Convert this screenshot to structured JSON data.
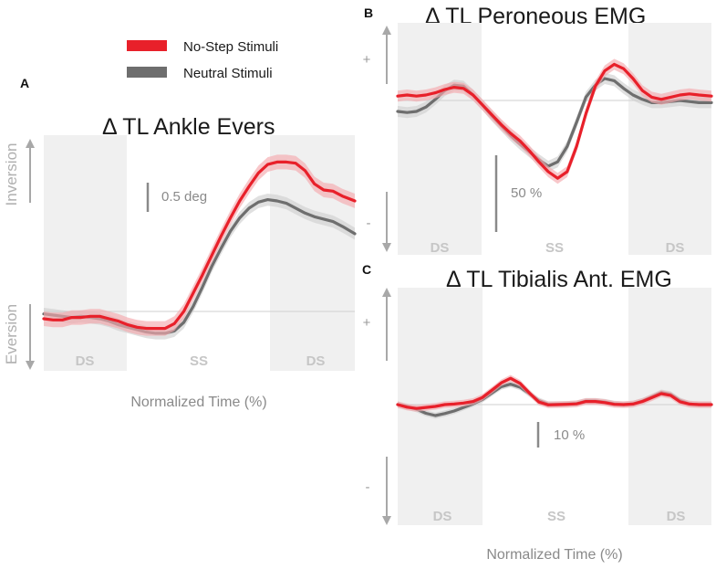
{
  "colors": {
    "no_step": "#e8202a",
    "neutral": "#6e6e6e",
    "no_step_band": "#f4a9ad",
    "neutral_band": "#cfcfcf",
    "phase_shade": "#f0f0f0"
  },
  "chart_data": [
    {
      "panel": "A",
      "type": "line",
      "title": "Δ TL Ankle Evers",
      "xlabel": "Normalized Time (%)",
      "upper_label": "Inversion",
      "lower_label": "Eversion",
      "scale_bar": "0.5 deg",
      "phases": [
        "DS",
        "SS",
        "DS"
      ],
      "ylim": [
        -0.3,
        1.5
      ],
      "x": [
        0,
        3,
        6,
        9,
        12,
        15,
        18,
        21,
        24,
        27,
        30,
        33,
        36,
        39,
        42,
        45,
        48,
        51,
        54,
        57,
        60,
        63,
        66,
        69,
        72,
        75,
        78,
        81,
        84,
        87,
        90,
        93,
        96,
        100
      ],
      "series": [
        {
          "name": "No-Step Stimuli",
          "band": 0.06,
          "values": [
            -0.06,
            -0.07,
            -0.07,
            -0.05,
            -0.05,
            -0.04,
            -0.04,
            -0.06,
            -0.08,
            -0.11,
            -0.13,
            -0.14,
            -0.14,
            -0.14,
            -0.1,
            0.0,
            0.15,
            0.3,
            0.46,
            0.62,
            0.77,
            0.91,
            1.03,
            1.14,
            1.21,
            1.23,
            1.23,
            1.22,
            1.16,
            1.05,
            1.0,
            0.99,
            0.95,
            0.91
          ]
        },
        {
          "name": "Neutral Stimuli",
          "band": 0.05,
          "values": [
            -0.02,
            -0.03,
            -0.04,
            -0.05,
            -0.04,
            -0.05,
            -0.06,
            -0.08,
            -0.11,
            -0.13,
            -0.15,
            -0.17,
            -0.18,
            -0.18,
            -0.16,
            -0.09,
            0.04,
            0.2,
            0.37,
            0.52,
            0.66,
            0.77,
            0.85,
            0.9,
            0.92,
            0.91,
            0.89,
            0.85,
            0.81,
            0.78,
            0.76,
            0.74,
            0.7,
            0.64
          ]
        }
      ]
    },
    {
      "panel": "B",
      "type": "line",
      "title": "Δ TL Peroneous EMG",
      "xlabel": "",
      "upper_label": "+",
      "lower_label": "-",
      "scale_bar": "50 %",
      "phases": [
        "DS",
        "SS",
        "DS"
      ],
      "ylim": [
        -140,
        50
      ],
      "x": [
        0,
        3,
        6,
        9,
        12,
        15,
        18,
        21,
        24,
        27,
        30,
        33,
        36,
        39,
        42,
        45,
        48,
        51,
        54,
        57,
        60,
        63,
        66,
        69,
        72,
        75,
        78,
        81,
        84,
        87,
        90,
        93,
        96,
        100
      ],
      "series": [
        {
          "name": "No-Step Stimuli",
          "band": 5,
          "values": [
            4,
            5,
            4,
            5,
            7,
            10,
            12,
            11,
            5,
            -4,
            -13,
            -22,
            -30,
            -37,
            -46,
            -56,
            -65,
            -71,
            -65,
            -42,
            -12,
            13,
            27,
            33,
            29,
            20,
            9,
            3,
            1,
            3,
            5,
            6,
            5,
            4
          ]
        },
        {
          "name": "Neutral Stimuli",
          "band": 5,
          "values": [
            -10,
            -11,
            -10,
            -6,
            1,
            9,
            14,
            13,
            5,
            -4,
            -14,
            -23,
            -32,
            -40,
            -47,
            -54,
            -60,
            -56,
            -42,
            -20,
            3,
            14,
            20,
            18,
            11,
            5,
            1,
            -2,
            -2,
            -1,
            0,
            -1,
            -2,
            -2
          ]
        }
      ]
    },
    {
      "panel": "C",
      "type": "line",
      "title": "Δ TL Tibialis Ant. EMG",
      "xlabel": "Normalized Time (%)",
      "upper_label": "+",
      "lower_label": "-",
      "scale_bar": "10 %",
      "phases": [
        "DS",
        "SS",
        "DS"
      ],
      "ylim": [
        -20,
        17
      ],
      "x": [
        0,
        3,
        6,
        9,
        12,
        15,
        18,
        21,
        24,
        27,
        30,
        33,
        36,
        39,
        42,
        45,
        48,
        51,
        54,
        57,
        60,
        63,
        66,
        69,
        72,
        75,
        78,
        81,
        84,
        87,
        90,
        93,
        96,
        100
      ],
      "series": [
        {
          "name": "No-Step Stimuli",
          "band": 1.3,
          "values": [
            0.0,
            -1.0,
            -1.5,
            -1.1,
            -0.7,
            0.0,
            0.2,
            0.6,
            1.2,
            2.8,
            5.6,
            8.5,
            10.3,
            8.3,
            4.5,
            1.0,
            -0.1,
            0.0,
            0.1,
            0.3,
            1.2,
            1.2,
            0.8,
            0.1,
            0.0,
            0.2,
            1.2,
            2.7,
            4.3,
            3.6,
            1.1,
            0.2,
            0.0,
            0.0
          ]
        },
        {
          "name": "Neutral Stimuli",
          "band": 1.2,
          "values": [
            0.0,
            -0.8,
            -1.8,
            -3.4,
            -4.3,
            -3.5,
            -2.5,
            -1.1,
            0.3,
            2.0,
            4.5,
            7.0,
            8.0,
            6.8,
            4.2,
            1.6,
            0.1,
            0.1,
            0.2,
            0.4,
            1.4,
            1.4,
            1.0,
            0.3,
            0.0,
            0.3,
            1.4,
            3.0,
            4.7,
            4.0,
            1.6,
            0.2,
            0.0,
            0.0
          ]
        }
      ]
    }
  ]
}
